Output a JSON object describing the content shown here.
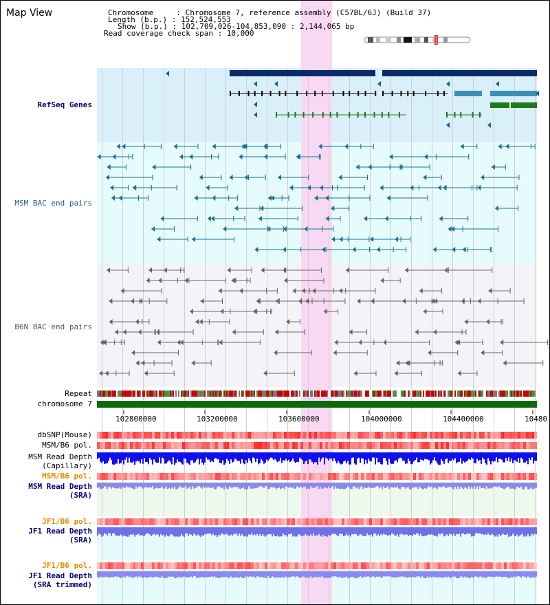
{
  "title": "Map View",
  "header": {
    "chromosome_label": "Chromosome     : Chromosome 7, reference assembly (C57BL/6J) (Build 37)",
    "length_label": "Length (b.p.) : 152,524,553",
    "show_label": "Show (b.p.) : 102,709,026-104,853,090 : 2,144,065 bp",
    "coverage_label": "Read coverage check span : 10,000"
  },
  "tracks": {
    "refseq": "RefSeq Genes",
    "msm_bac": "MSM BAC end pairs",
    "b6n_bac": "B6N BAC end pairs",
    "repeat": "Repeat",
    "chromosome": "chromosome 7",
    "dbsnp": "dbSNP(Mouse)",
    "msm_b6_pol_1": "MSM/B6 pol.",
    "msm_read_depth_cap_1": "MSM Read Depth",
    "msm_read_depth_cap_2": "(Capillary)",
    "msm_b6_pol_2": "MSM/B6 pol.",
    "msm_read_depth_sra_1": "MSM Read Depth",
    "msm_read_depth_sra_2": "(SRA)",
    "jf1_b6_pol_1": "JF1/B6 pol.",
    "jf1_read_depth_sra_1": "JF1 Read Depth",
    "jf1_read_depth_sra_2": "(SRA)",
    "jf1_b6_pol_2": "JF1/B6 pol.",
    "jf1_read_depth_trim_1": "JF1 Read Depth",
    "jf1_read_depth_trim_2": "(SRA trimmed)"
  },
  "axis": {
    "ticks": [
      "102800000",
      "103200000",
      "103600000",
      "104000000",
      "104400000",
      "10480"
    ]
  },
  "colors": {
    "refseq_bg": "#d9f0fa",
    "msm_bg": "#e6fbfb",
    "b6n_bg": "#f4f4f8",
    "highlight": "#f8d8f2",
    "gene_navy": "#0a2a6a",
    "gene_teal": "#3b8fb3",
    "gene_green": "#1e7a1e",
    "chrom_green": "#0b6b0b",
    "label_blue": "#000080",
    "label_orange": "#e08c00"
  }
}
